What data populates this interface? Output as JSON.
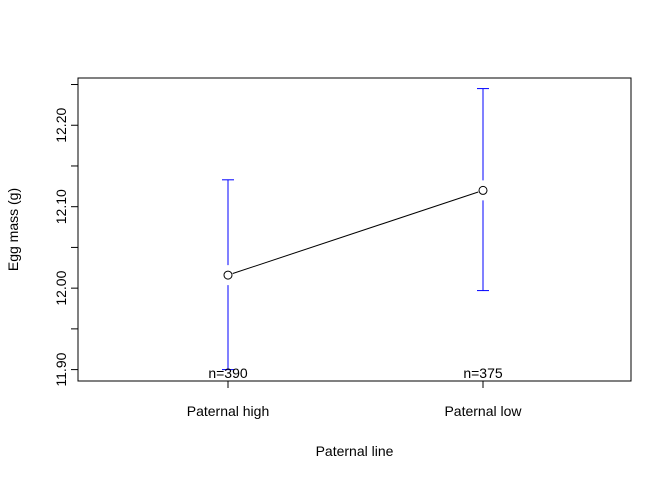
{
  "chart_data": {
    "type": "line",
    "categories": [
      "Paternal high",
      "Paternal low"
    ],
    "xlabel": "Paternal line",
    "ylabel": "Egg mass (g)",
    "ylim": [
      11.886,
      12.258
    ],
    "yticks": [
      11.9,
      11.95,
      12.0,
      12.05,
      12.1,
      12.15,
      12.2,
      12.25
    ],
    "ytick_labels": [
      "11.90",
      "",
      "12.00",
      "",
      "12.10",
      "",
      "12.20",
      ""
    ],
    "series": [
      {
        "values": [
          12.016,
          12.12
        ],
        "lower": [
          11.9,
          11.997
        ],
        "upper": [
          12.133,
          12.245
        ],
        "n_labels": [
          "n=390",
          "n=375"
        ]
      }
    ],
    "colors": {
      "line": "#000000",
      "error_bar": "#0000ff",
      "frame": "#000000"
    },
    "grid": false,
    "legend": "none"
  }
}
